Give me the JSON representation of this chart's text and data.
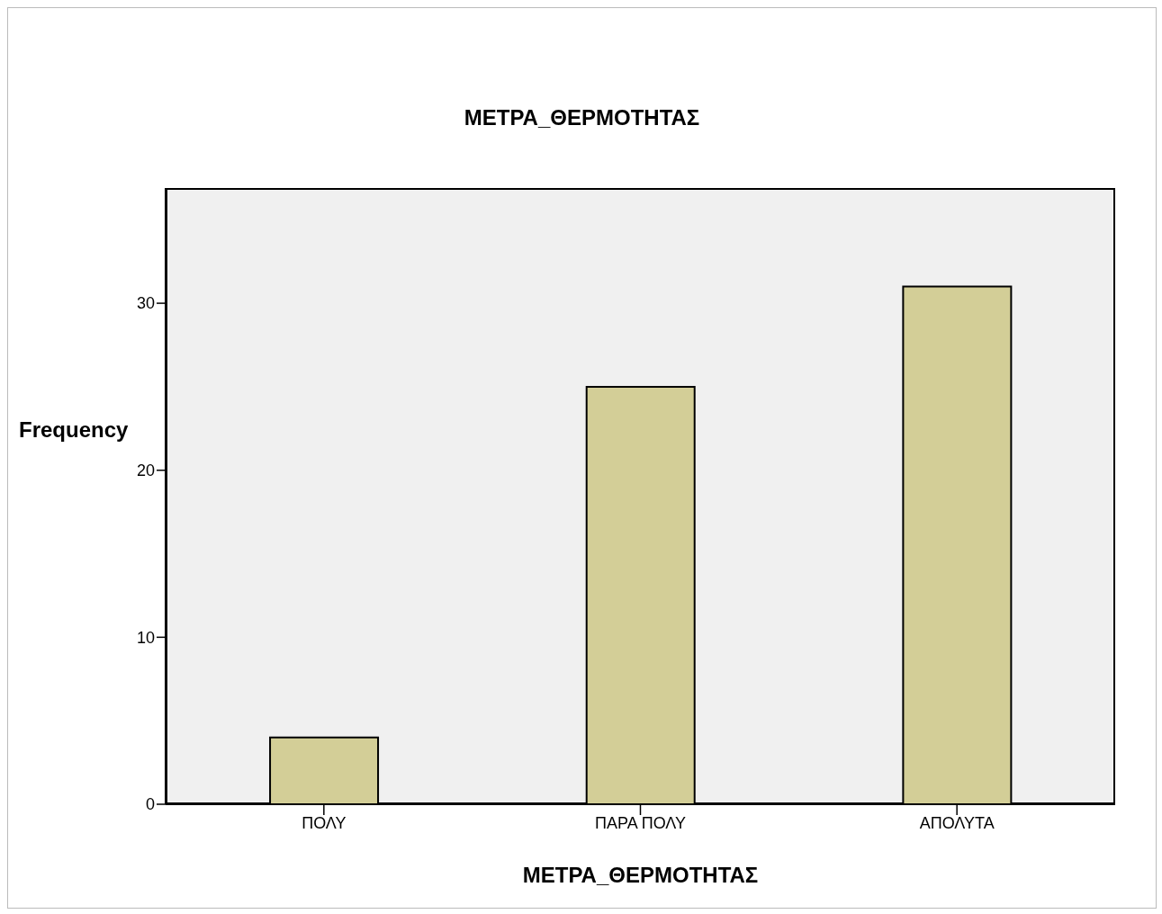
{
  "chart_data": {
    "type": "bar",
    "title": "ΜΕΤΡΑ_ΘΕΡΜΟΤΗΤΑΣ",
    "xlabel": "ΜΕΤΡΑ_ΘΕΡΜΟΤΗΤΑΣ",
    "ylabel": "Frequency",
    "categories": [
      "ΠΟΛΥ",
      "ΠΑΡΑ ΠΟΛΥ",
      "ΑΠΟΛΥΤΑ"
    ],
    "values": [
      4,
      25,
      31
    ],
    "color": "#d3ce97",
    "ylim": [
      0,
      36.9
    ],
    "yticks": [
      0,
      10,
      20,
      30
    ]
  }
}
